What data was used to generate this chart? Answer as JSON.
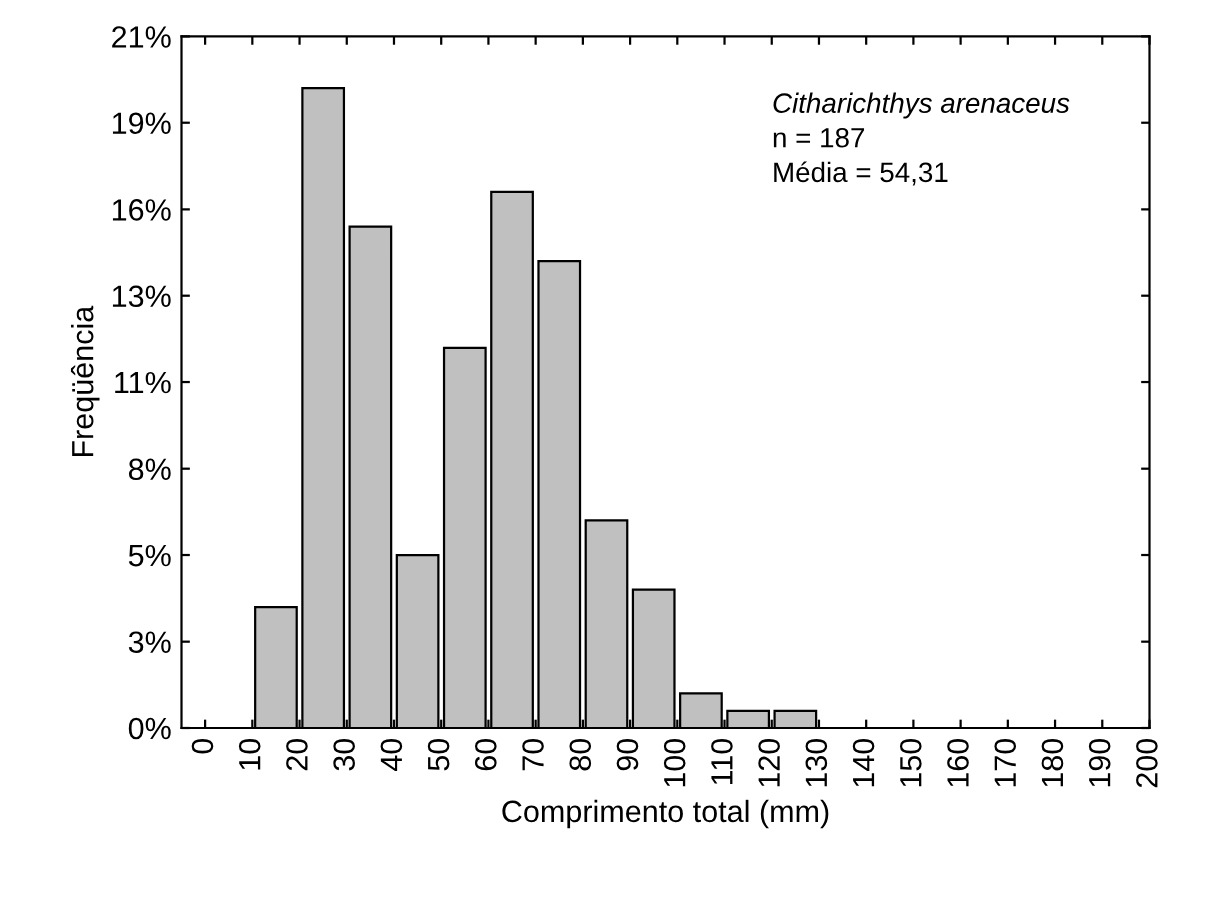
{
  "chart_data": {
    "type": "histogram",
    "xlabel": "Comprimento total (mm)",
    "ylabel": "Freqüência",
    "bins": [
      0,
      10,
      20,
      30,
      40,
      50,
      60,
      70,
      80,
      90,
      100,
      110,
      120,
      130,
      140,
      150,
      160,
      170,
      180,
      190,
      200
    ],
    "values": [
      0,
      3.74,
      19.79,
      15.51,
      5.35,
      11.76,
      16.58,
      14.44,
      6.42,
      4.28,
      1.07,
      0.53,
      0.53,
      0,
      0,
      0,
      0,
      0,
      0,
      0
    ],
    "color": "#c0c0c0",
    "xlim": [
      -5,
      200
    ],
    "xticks": [
      0,
      10,
      20,
      30,
      40,
      50,
      60,
      70,
      80,
      90,
      100,
      110,
      120,
      130,
      140,
      150,
      160,
      170,
      180,
      190,
      200
    ],
    "ylim": [
      0,
      21.39
    ],
    "yticks": [
      {
        "value": 0,
        "label": "0%"
      },
      {
        "value": 2.67,
        "label": "3%"
      },
      {
        "value": 5.35,
        "label": "5%"
      },
      {
        "value": 8.02,
        "label": "8%"
      },
      {
        "value": 10.7,
        "label": "11%"
      },
      {
        "value": 13.37,
        "label": "13%"
      },
      {
        "value": 16.04,
        "label": "16%"
      },
      {
        "value": 18.72,
        "label": "19%"
      },
      {
        "value": 21.39,
        "label": "21%"
      }
    ],
    "grid": false,
    "annotations": [
      "Citharichthys arenaceus",
      "n = 187",
      "Média = 54,31"
    ]
  }
}
